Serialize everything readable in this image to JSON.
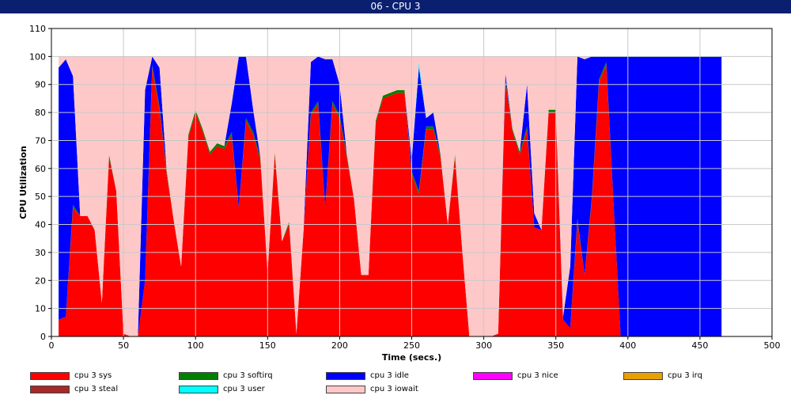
{
  "window": {
    "title": "06 - CPU 3"
  },
  "chart_data": {
    "type": "area",
    "stacked": true,
    "xlabel": "Time (secs.)",
    "ylabel": "CPU Utilization",
    "xlim": [
      0,
      500
    ],
    "ylim": [
      0,
      110
    ],
    "xticks": [
      0,
      50,
      100,
      150,
      200,
      250,
      300,
      350,
      400,
      450,
      500
    ],
    "yticks": [
      0,
      10,
      20,
      30,
      40,
      50,
      60,
      70,
      80,
      90,
      100,
      110
    ],
    "grid": true,
    "legend_position": "bottom",
    "x": [
      5,
      10,
      15,
      20,
      25,
      30,
      35,
      40,
      45,
      50,
      55,
      60,
      65,
      70,
      75,
      80,
      85,
      90,
      95,
      100,
      105,
      110,
      115,
      120,
      125,
      130,
      135,
      140,
      145,
      150,
      155,
      160,
      165,
      170,
      175,
      180,
      185,
      190,
      195,
      200,
      205,
      210,
      215,
      220,
      225,
      230,
      235,
      240,
      245,
      250,
      255,
      260,
      265,
      270,
      275,
      280,
      285,
      290,
      295,
      300,
      305,
      310,
      315,
      320,
      325,
      330,
      335,
      340,
      345,
      350,
      355,
      360,
      365,
      370,
      375,
      380,
      385,
      390,
      395,
      400,
      405,
      410,
      415,
      420,
      425,
      430,
      435,
      440,
      445,
      450,
      455,
      460,
      465
    ],
    "series": [
      {
        "name": "cpu 3 sys",
        "color": "#ff0000",
        "values": [
          6,
          7,
          46,
          43,
          43,
          38,
          12,
          64,
          52,
          1,
          0,
          0,
          20,
          96,
          81,
          58,
          41,
          25,
          71,
          80,
          73,
          65,
          68,
          67,
          72,
          46,
          77,
          72,
          63,
          23,
          65,
          34,
          40,
          1,
          38,
          79,
          83,
          46,
          83,
          78,
          64,
          49,
          22,
          22,
          76,
          85,
          86,
          87,
          87,
          58,
          51,
          74,
          74,
          64,
          40,
          64,
          31,
          0,
          0,
          0,
          0,
          1,
          91,
          73,
          65,
          74,
          39,
          38,
          80,
          80,
          6,
          3,
          41,
          22,
          49,
          91,
          97,
          48,
          0,
          0,
          0,
          0,
          0,
          0,
          0,
          0,
          0,
          0,
          0,
          0,
          0,
          0,
          0
        ]
      },
      {
        "name": "cpu 3 softirq",
        "color": "#008000",
        "values": [
          0,
          0,
          1,
          0,
          0,
          0,
          0,
          1,
          0,
          0,
          0,
          0,
          0,
          1,
          1,
          1,
          0,
          0,
          1,
          1,
          1,
          1,
          1,
          1,
          1,
          0,
          1,
          1,
          1,
          0,
          1,
          0,
          1,
          0,
          0,
          1,
          1,
          0,
          1,
          1,
          1,
          0,
          0,
          0,
          1,
          1,
          1,
          1,
          1,
          1,
          1,
          1,
          1,
          1,
          0,
          1,
          0,
          0,
          0,
          0,
          0,
          0,
          1,
          1,
          1,
          1,
          0,
          0,
          1,
          1,
          0,
          0,
          1,
          0,
          1,
          1,
          1,
          0,
          0,
          0,
          0,
          0,
          0,
          0,
          0,
          0,
          0,
          0,
          0,
          0,
          0,
          0,
          0
        ]
      },
      {
        "name": "cpu 3 idle",
        "color": "#0000ff",
        "values": [
          90,
          92,
          46,
          0,
          0,
          0,
          0,
          0,
          0,
          0,
          0,
          0,
          68,
          3,
          14,
          0,
          0,
          0,
          0,
          0,
          0,
          0,
          0,
          0,
          10,
          54,
          22,
          8,
          0,
          0,
          0,
          0,
          0,
          0,
          0,
          18,
          16,
          53,
          15,
          11,
          0,
          0,
          0,
          0,
          0,
          0,
          0,
          0,
          0,
          4,
          44,
          3,
          5,
          0,
          0,
          0,
          0,
          0,
          0,
          0,
          0,
          0,
          2,
          0,
          0,
          15,
          5,
          0,
          0,
          0,
          1,
          22,
          58,
          77,
          50,
          8,
          2,
          52,
          100,
          100,
          100,
          100,
          100,
          100,
          100,
          100,
          100,
          100,
          100,
          100,
          100,
          100,
          100
        ]
      },
      {
        "name": "cpu 3 nice",
        "color": "#ff00ff",
        "values": [
          0,
          0,
          0,
          0,
          0,
          0,
          0,
          0,
          0,
          0,
          0,
          0,
          0,
          0,
          0,
          0,
          0,
          0,
          0,
          0,
          0,
          0,
          0,
          0,
          0,
          0,
          0,
          0,
          0,
          0,
          0,
          0,
          0,
          0,
          0,
          0,
          0,
          0,
          0,
          0,
          0,
          0,
          0,
          0,
          0,
          0,
          0,
          0,
          0,
          0,
          0,
          0,
          0,
          0,
          0,
          0,
          0,
          0,
          0,
          0,
          0,
          0,
          0,
          0,
          0,
          0,
          0,
          0,
          0,
          0,
          0,
          0,
          0,
          0,
          0,
          0,
          0,
          0,
          0,
          0,
          0,
          0,
          0,
          0,
          0,
          0,
          0,
          0,
          0,
          0,
          0,
          0,
          0
        ]
      },
      {
        "name": "cpu 3 irq",
        "color": "#e8a000",
        "values": [
          0,
          0,
          0,
          0,
          0,
          0,
          0,
          0,
          0,
          0,
          0,
          0,
          0,
          0,
          0,
          0,
          0,
          0,
          0,
          0,
          0,
          0,
          0,
          0,
          0,
          0,
          0,
          0,
          0,
          0,
          0,
          0,
          0,
          0,
          0,
          0,
          0,
          0,
          0,
          0,
          0,
          0,
          0,
          0,
          0,
          0,
          0,
          0,
          0,
          0,
          0,
          0,
          0,
          0,
          0,
          0,
          0,
          0,
          0,
          0,
          0,
          0,
          0,
          0,
          0,
          0,
          0,
          0,
          0,
          0,
          0,
          0,
          0,
          0,
          0,
          0,
          0,
          0,
          0,
          0,
          0,
          0,
          0,
          0,
          0,
          0,
          0,
          0,
          0,
          0,
          0,
          0,
          0
        ]
      },
      {
        "name": "cpu 3 steal",
        "color": "#a52a2a",
        "values": [
          0,
          0,
          0,
          0,
          0,
          0,
          0,
          0,
          0,
          0,
          0,
          0,
          0,
          0,
          0,
          0,
          0,
          0,
          0,
          0,
          0,
          0,
          0,
          0,
          0,
          0,
          0,
          0,
          0,
          0,
          0,
          0,
          0,
          0,
          0,
          0,
          0,
          0,
          0,
          0,
          0,
          0,
          0,
          0,
          0,
          0,
          0,
          0,
          0,
          0,
          0,
          0,
          0,
          0,
          0,
          0,
          0,
          0,
          0,
          0,
          0,
          0,
          0,
          0,
          0,
          0,
          0,
          0,
          0,
          0,
          0,
          0,
          0,
          0,
          0,
          0,
          0,
          0,
          0,
          0,
          0,
          0,
          0,
          0,
          0,
          0,
          0,
          0,
          0,
          0,
          0,
          0,
          0
        ]
      },
      {
        "name": "cpu 3 user",
        "color": "#00ffff",
        "values": [
          0,
          0,
          0,
          0,
          0,
          0,
          0,
          0,
          0,
          0,
          0,
          0,
          0,
          0,
          0,
          0,
          0,
          0,
          0,
          0,
          0,
          0,
          0,
          0,
          0,
          0,
          0,
          0,
          0,
          0,
          0,
          0,
          0,
          0,
          0,
          0,
          0,
          0,
          0,
          0,
          0,
          0,
          0,
          0,
          0,
          0,
          0,
          0,
          0,
          0,
          2,
          0,
          0,
          0,
          0,
          0,
          0,
          0,
          0,
          0,
          0,
          0,
          0,
          0,
          0,
          0,
          0,
          0,
          0,
          0,
          0,
          0,
          0,
          0,
          0,
          0,
          0,
          0,
          0,
          0,
          0,
          0,
          0,
          0,
          0,
          0,
          0,
          0,
          0,
          0,
          0,
          0,
          0
        ]
      },
      {
        "name": "cpu 3 iowait",
        "color": "#ffc8c8",
        "values": [
          4,
          1,
          7,
          57,
          57,
          62,
          88,
          35,
          48,
          99,
          100,
          100,
          12,
          0,
          4,
          41,
          59,
          75,
          28,
          19,
          26,
          34,
          31,
          32,
          17,
          0,
          0,
          19,
          36,
          77,
          34,
          66,
          59,
          99,
          62,
          2,
          0,
          1,
          1,
          10,
          35,
          51,
          78,
          78,
          23,
          14,
          13,
          12,
          12,
          37,
          2,
          22,
          20,
          35,
          60,
          35,
          69,
          100,
          100,
          100,
          100,
          99,
          6,
          26,
          34,
          10,
          56,
          62,
          19,
          19,
          93,
          75,
          0,
          1,
          0,
          0,
          0,
          0,
          0,
          0,
          0,
          0,
          0,
          0,
          0,
          0,
          0,
          0,
          0,
          0,
          0,
          0,
          0
        ]
      }
    ]
  }
}
